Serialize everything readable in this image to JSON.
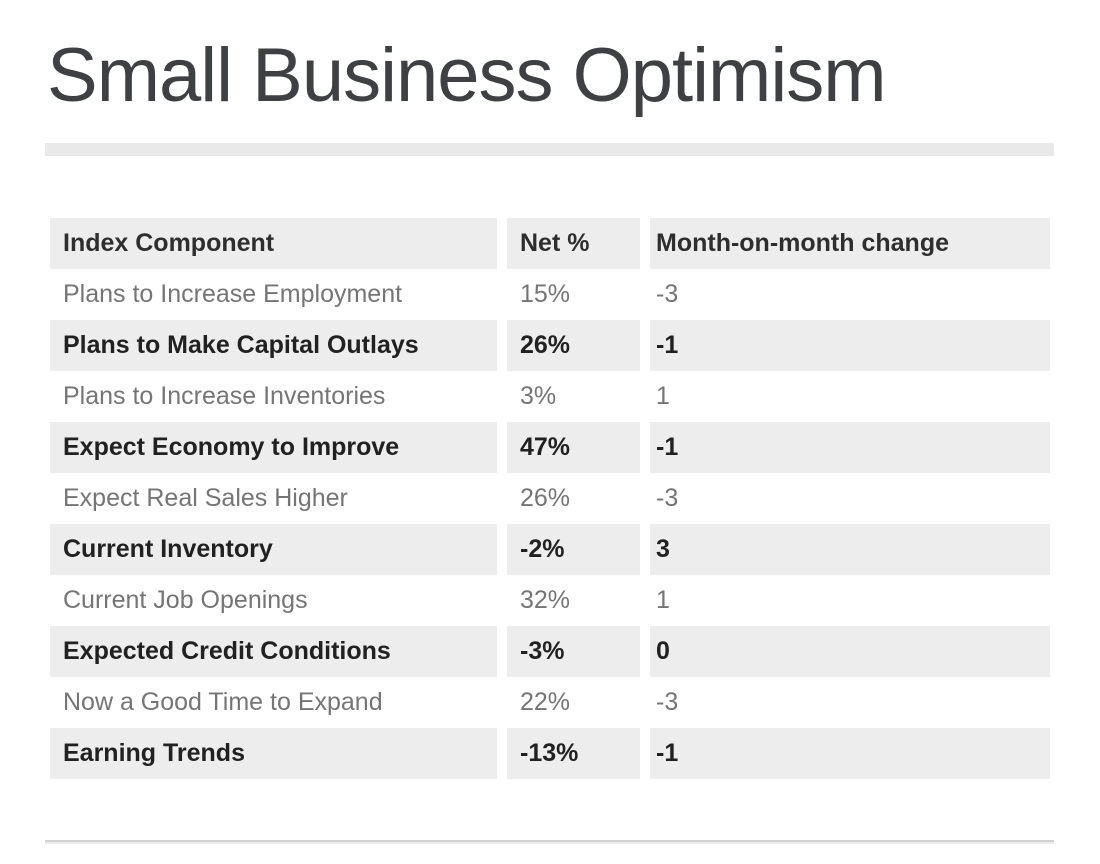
{
  "page": {
    "title": "Small Business Optimism"
  },
  "table": {
    "header": {
      "component": "Index Component",
      "net": "Net %",
      "change": "Month-on-month change"
    },
    "rows": [
      {
        "component": "Plans to Increase Employment",
        "net": "15%",
        "change": "-3",
        "emphasized": false
      },
      {
        "component": "Plans to Make Capital Outlays",
        "net": "26%",
        "change": "-1",
        "emphasized": true
      },
      {
        "component": "Plans to Increase Inventories",
        "net": "3%",
        "change": "1",
        "emphasized": false
      },
      {
        "component": "Expect Economy to Improve",
        "net": "47%",
        "change": "-1",
        "emphasized": true
      },
      {
        "component": "Expect Real Sales Higher",
        "net": "26%",
        "change": "-3",
        "emphasized": false
      },
      {
        "component": "Current Inventory",
        "net": "-2%",
        "change": "3",
        "emphasized": true
      },
      {
        "component": "Current Job Openings",
        "net": "32%",
        "change": "1",
        "emphasized": false
      },
      {
        "component": "Expected Credit Conditions",
        "net": "-3%",
        "change": "0",
        "emphasized": true
      },
      {
        "component": "Now a Good Time to Expand",
        "net": "22%",
        "change": "-3",
        "emphasized": false
      },
      {
        "component": "Earning Trends",
        "net": "-13%",
        "change": "-1",
        "emphasized": true
      }
    ]
  },
  "chart_data": {
    "type": "table",
    "title": "Small Business Optimism",
    "columns": [
      "Index Component",
      "Net %",
      "Month-on-month change"
    ],
    "rows": [
      [
        "Plans to Increase Employment",
        15,
        -3
      ],
      [
        "Plans to Make Capital Outlays",
        26,
        -1
      ],
      [
        "Plans to Increase Inventories",
        3,
        1
      ],
      [
        "Expect Economy to Improve",
        47,
        -1
      ],
      [
        "Expect Real Sales Higher",
        26,
        -3
      ],
      [
        "Current Inventory",
        -2,
        3
      ],
      [
        "Current Job Openings",
        32,
        1
      ],
      [
        "Expected Credit Conditions",
        -3,
        0
      ],
      [
        "Now a Good Time to Expand",
        22,
        -3
      ],
      [
        "Earning Trends",
        -13,
        -1
      ]
    ],
    "net_unit": "%",
    "layout_hints": {
      "zebra_striping": true,
      "emphasized_rows_bold": true,
      "grid": "off"
    }
  },
  "colors": {
    "page_bg": "#ffffff",
    "title_text": "#3e4043",
    "title_bar": "#e9e9e9",
    "header_bg": "#ededed",
    "header_text": "#2e2e2e",
    "row_bg": "#ffffff",
    "row_text": "#757575",
    "row_alt_bg": "#ededed",
    "row_alt_text": "#212121",
    "rule_color": "#d2d2d2",
    "rule_shadow": "#ececec"
  }
}
